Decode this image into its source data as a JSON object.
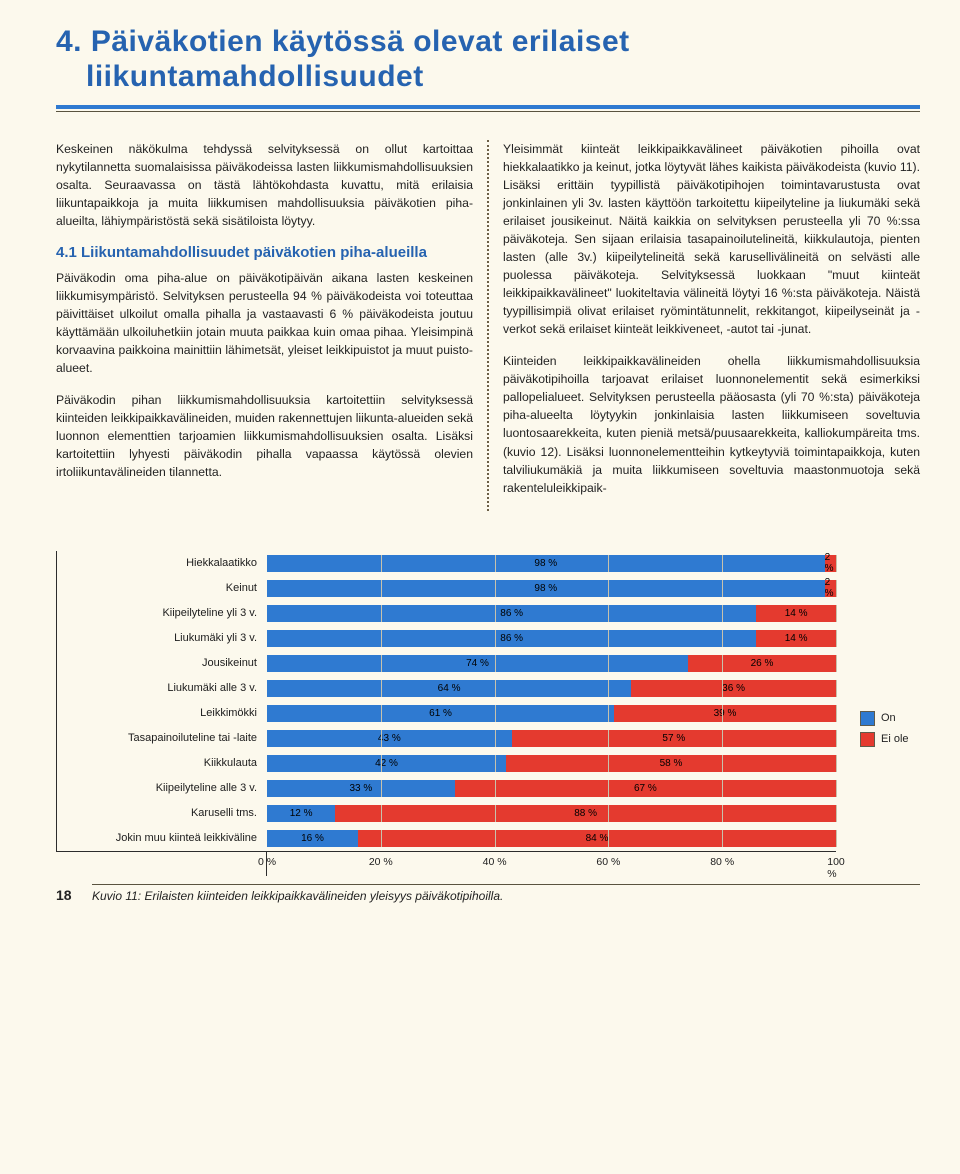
{
  "title_line1": "4. Päiväkotien käytössä olevat erilaiset",
  "title_line2": "liikuntamahdollisuudet",
  "col_left": {
    "p1": "Keskeinen näkökulma tehdyssä selvityksessä on ollut kartoittaa nykytilannetta suomalaisissa päiväkodeissa lasten liikkumismahdollisuuksien osalta. Seuraavassa on tästä lähtökohdasta kuvattu, mitä erilaisia liikuntapaikkoja ja muita liikkumisen mahdollisuuksia päiväkotien piha-alueilta, lähiympäristöstä sekä sisätiloista löytyy.",
    "h2": "4.1 Liikuntamahdollisuudet päiväkotien piha-alueilla",
    "p2": "Päiväkodin oma piha-alue on päiväkotipäivän aikana lasten keskeinen liikkumisympäristö. Selvityksen perusteella 94 % päiväkodeista voi toteuttaa päivittäiset ulkoilut omalla pihalla ja vastaavasti 6 % päiväkodeista joutuu käyttämään ulkoiluhetkiin jotain muuta paikkaa kuin omaa pihaa. Yleisimpinä korvaavina paikkoina mainittiin lähimetsät, yleiset leikkipuistot ja muut puisto-alueet.",
    "p3": "Päiväkodin pihan liikkumismahdollisuuksia kartoitettiin selvityksessä kiinteiden leikkipaikkavälineiden, muiden rakennettujen liikunta-alueiden sekä luonnon elementtien tarjoamien liikkumismahdollisuuksien osalta. Lisäksi kartoitettiin lyhyesti päiväkodin pihalla vapaassa käytössä olevien irtoliikuntavälineiden tilannetta."
  },
  "col_right": {
    "p1": "Yleisimmät kiinteät leikkipaikkavälineet päiväkotien pihoilla ovat hiekkalaatikko ja keinut, jotka löytyvät lähes kaikista päiväkodeista (kuvio 11). Lisäksi erittäin tyypillistä päiväkotipihojen toimintavarustusta ovat jonkinlainen yli 3v. lasten käyttöön tarkoitettu kiipeilyteline ja liukumäki sekä erilaiset jousikeinut. Näitä kaikkia on selvityksen perusteella yli 70 %:ssa päiväkoteja. Sen sijaan erilaisia tasapainoilutelineitä, kiikkulautoja, pienten lasten (alle 3v.) kiipeilytelineitä sekä karusellivälineitä on selvästi alle puolessa päiväkoteja. Selvityksessä luokkaan \"muut kiinteät leikkipaikkavälineet\" luokiteltavia välineitä löytyi 16 %:sta päiväkoteja. Näistä tyypillisimpiä olivat erilaiset ryömintätunnelit, rekkitangot, kiipeilyseinät ja -verkot sekä erilaiset kiinteät leikkiveneet, -autot tai -junat.",
    "p2": "Kiinteiden leikkipaikkavälineiden ohella liikkumismahdollisuuksia päiväkotipihoilla tarjoavat erilaiset luonnonelementit sekä esimerkiksi pallopelialueet. Selvityksen perusteella pääosasta (yli 70 %:sta) päiväkoteja piha-alueelta löytyykin jonkinlaisia lasten liikkumiseen soveltuvia luontosaarekkeita, kuten pieniä metsä/puusaarekkeita, kalliokumpäreita tms. (kuvio 12). Lisäksi luonnonelementteihin kytkeytyviä toimintapaikkoja, kuten talviliukumäkiä ja muita liikkumiseen soveltuvia maastonmuotoja sekä rakenteluleikkipaik-"
  },
  "chart": {
    "categories": [
      "Hiekkalaatikko",
      "Keinut",
      "Kiipeilyteline yli 3 v.",
      "Liukumäki yli 3 v.",
      "Jousikeinut",
      "Liukumäki alle 3 v.",
      "Leikkimökki",
      "Tasapainoiluteline tai -laite",
      "Kiikkulauta",
      "Kiipeilyteline alle 3 v.",
      "Karuselli tms.",
      "Jokin muu kiinteä leikkiväline"
    ],
    "on_values": [
      98,
      98,
      86,
      86,
      74,
      64,
      61,
      43,
      42,
      33,
      12,
      16
    ],
    "off_values": [
      2,
      2,
      14,
      14,
      26,
      36,
      39,
      57,
      58,
      67,
      88,
      84
    ],
    "xticks": [
      0,
      20,
      40,
      60,
      80,
      100
    ],
    "color_on": "#2f7ad1",
    "color_off": "#e43a2f",
    "legend_on": "On",
    "legend_off": "Ei ole"
  },
  "page_num": "18",
  "caption": "Kuvio 11: Erilaisten kiinteiden leikkipaikkavälineiden yleisyys päiväkotipihoilla."
}
